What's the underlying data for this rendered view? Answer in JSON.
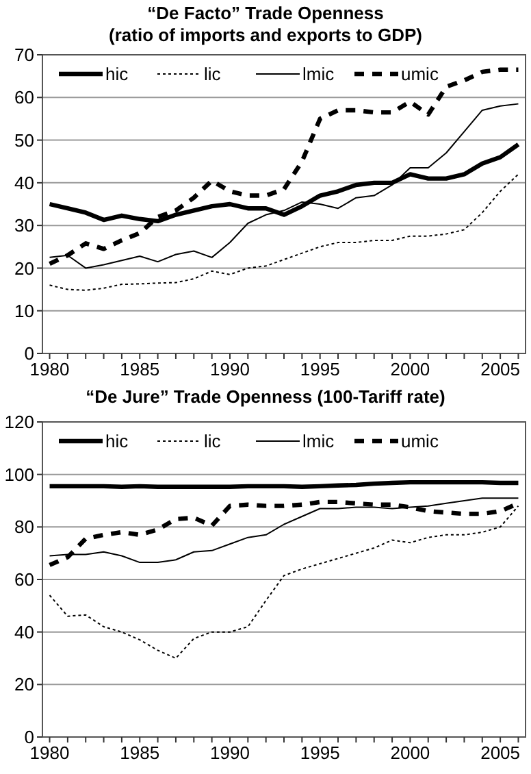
{
  "chart_data": [
    {
      "type": "line",
      "title": "“De Facto” Trade Openness",
      "subtitle": "(ratio of imports and exports to GDP)",
      "x": [
        1980,
        1981,
        1982,
        1983,
        1984,
        1985,
        1986,
        1987,
        1988,
        1989,
        1990,
        1991,
        1992,
        1993,
        1994,
        1995,
        1996,
        1997,
        1998,
        1999,
        2000,
        2001,
        2002,
        2003,
        2004,
        2005,
        2006
      ],
      "xlim": [
        1979.6,
        2006.4
      ],
      "xticks": [
        1980,
        {
          "value": 1981,
          "label": null
        },
        {
          "value": 1982,
          "label": null
        },
        {
          "value": 1983,
          "label": null
        },
        {
          "value": 1984,
          "label": null
        },
        1985,
        {
          "value": 1986,
          "label": null
        },
        {
          "value": 1987,
          "label": null
        },
        {
          "value": 1988,
          "label": null
        },
        {
          "value": 1989,
          "label": null
        },
        1990,
        {
          "value": 1991,
          "label": null
        },
        {
          "value": 1992,
          "label": null
        },
        {
          "value": 1993,
          "label": null
        },
        {
          "value": 1994,
          "label": null
        },
        1995,
        {
          "value": 1996,
          "label": null
        },
        {
          "value": 1997,
          "label": null
        },
        {
          "value": 1998,
          "label": null
        },
        {
          "value": 1999,
          "label": null
        },
        2000,
        {
          "value": 2001,
          "label": null
        },
        {
          "value": 2002,
          "label": null
        },
        {
          "value": 2003,
          "label": null
        },
        {
          "value": 2004,
          "label": null
        },
        2005,
        {
          "value": 2006,
          "label": null
        }
      ],
      "ylim": [
        0,
        70
      ],
      "yticks": [
        0,
        10,
        20,
        30,
        40,
        50,
        60,
        70
      ],
      "grid": "y",
      "legend": "top",
      "series": [
        {
          "name": "hic",
          "color": "#000000",
          "line_style": "solid",
          "values": [
            35,
            34,
            33,
            31.3,
            32.3,
            31.5,
            31,
            32.5,
            33.5,
            34.5,
            35,
            34,
            34,
            32.5,
            34.5,
            37,
            38,
            39.5,
            40,
            40,
            42,
            41,
            41,
            42,
            44.5,
            46,
            49
          ]
        },
        {
          "name": "lic",
          "color": "#000000",
          "line_style": "dotted",
          "values": [
            16,
            15,
            14.8,
            15.3,
            16.2,
            16.3,
            16.5,
            16.6,
            17.5,
            19.3,
            18.5,
            20,
            20.5,
            22,
            23.5,
            25,
            26,
            26,
            26.5,
            26.5,
            27.5,
            27.5,
            28,
            29,
            33,
            38,
            42
          ]
        },
        {
          "name": "lmic",
          "color": "#000000",
          "line_style": "solid",
          "values": [
            22.5,
            23,
            20,
            20.8,
            21.8,
            22.8,
            21.5,
            23.2,
            24,
            22.5,
            26,
            30.5,
            32.5,
            33.5,
            35.5,
            35,
            34,
            36.5,
            37,
            39.5,
            43.5,
            43.5,
            47,
            52,
            57,
            58,
            58.5
          ]
        },
        {
          "name": "umic",
          "color": "#000000",
          "line_style": "dashed",
          "values": [
            21,
            23,
            25.8,
            24.5,
            26.5,
            28.2,
            32,
            33.5,
            36.5,
            40.5,
            38,
            37,
            37,
            38.5,
            45,
            55,
            57,
            57,
            56.5,
            56.5,
            59,
            56,
            62.5,
            64,
            66,
            66.5,
            66.5
          ]
        }
      ]
    },
    {
      "type": "line",
      "title": "“De Jure” Trade Openness (100-Tariff rate)",
      "x": [
        1980,
        1981,
        1982,
        1983,
        1984,
        1985,
        1986,
        1987,
        1988,
        1989,
        1990,
        1991,
        1992,
        1993,
        1994,
        1995,
        1996,
        1997,
        1998,
        1999,
        2000,
        2001,
        2002,
        2003,
        2004,
        2005,
        2006
      ],
      "xlim": [
        1979.6,
        2006.4
      ],
      "xticks": [
        1980,
        {
          "value": 1981,
          "label": null
        },
        {
          "value": 1982,
          "label": null
        },
        {
          "value": 1983,
          "label": null
        },
        {
          "value": 1984,
          "label": null
        },
        1985,
        {
          "value": 1986,
          "label": null
        },
        {
          "value": 1987,
          "label": null
        },
        {
          "value": 1988,
          "label": null
        },
        {
          "value": 1989,
          "label": null
        },
        1990,
        {
          "value": 1991,
          "label": null
        },
        {
          "value": 1992,
          "label": null
        },
        {
          "value": 1993,
          "label": null
        },
        {
          "value": 1994,
          "label": null
        },
        1995,
        {
          "value": 1996,
          "label": null
        },
        {
          "value": 1997,
          "label": null
        },
        {
          "value": 1998,
          "label": null
        },
        {
          "value": 1999,
          "label": null
        },
        2000,
        {
          "value": 2001,
          "label": null
        },
        {
          "value": 2002,
          "label": null
        },
        {
          "value": 2003,
          "label": null
        },
        {
          "value": 2004,
          "label": null
        },
        2005,
        {
          "value": 2006,
          "label": null
        }
      ],
      "ylim": [
        0,
        120
      ],
      "yticks": [
        0,
        20,
        40,
        60,
        80,
        100,
        120
      ],
      "grid": "y",
      "legend": "top",
      "series": [
        {
          "name": "hic",
          "color": "#000000",
          "line_style": "solid",
          "values": [
            95.5,
            95.5,
            95.5,
            95.5,
            95.3,
            95.5,
            95.3,
            95.3,
            95.3,
            95.3,
            95.3,
            95.5,
            95.5,
            95.5,
            95.3,
            95.5,
            95.8,
            96,
            96.5,
            96.8,
            97,
            97,
            97,
            97,
            97,
            96.8,
            96.8
          ]
        },
        {
          "name": "lic",
          "color": "#000000",
          "line_style": "dotted",
          "values": [
            54,
            46,
            46.5,
            42,
            40,
            37,
            33,
            30,
            37.5,
            40,
            40,
            42,
            52,
            61.5,
            64,
            66,
            68,
            70,
            72,
            75,
            74,
            76,
            77,
            77,
            78,
            80,
            88
          ]
        },
        {
          "name": "lmic",
          "color": "#000000",
          "line_style": "solid",
          "values": [
            69,
            69.5,
            69.5,
            70.5,
            69,
            66.5,
            66.5,
            67.5,
            70.5,
            71,
            73.5,
            76,
            77,
            81,
            84,
            87,
            87,
            87.5,
            87.5,
            87,
            87.5,
            88,
            89,
            90,
            91,
            91,
            91
          ]
        },
        {
          "name": "umic",
          "color": "#000000",
          "line_style": "dashed",
          "values": [
            65.5,
            68.5,
            75.5,
            77,
            78,
            77,
            79,
            83,
            83.5,
            80.5,
            88,
            88.5,
            88,
            88,
            88.5,
            89.5,
            89.5,
            89,
            88.5,
            88.5,
            87.5,
            86,
            85.5,
            85,
            85,
            86,
            89
          ]
        }
      ]
    }
  ]
}
